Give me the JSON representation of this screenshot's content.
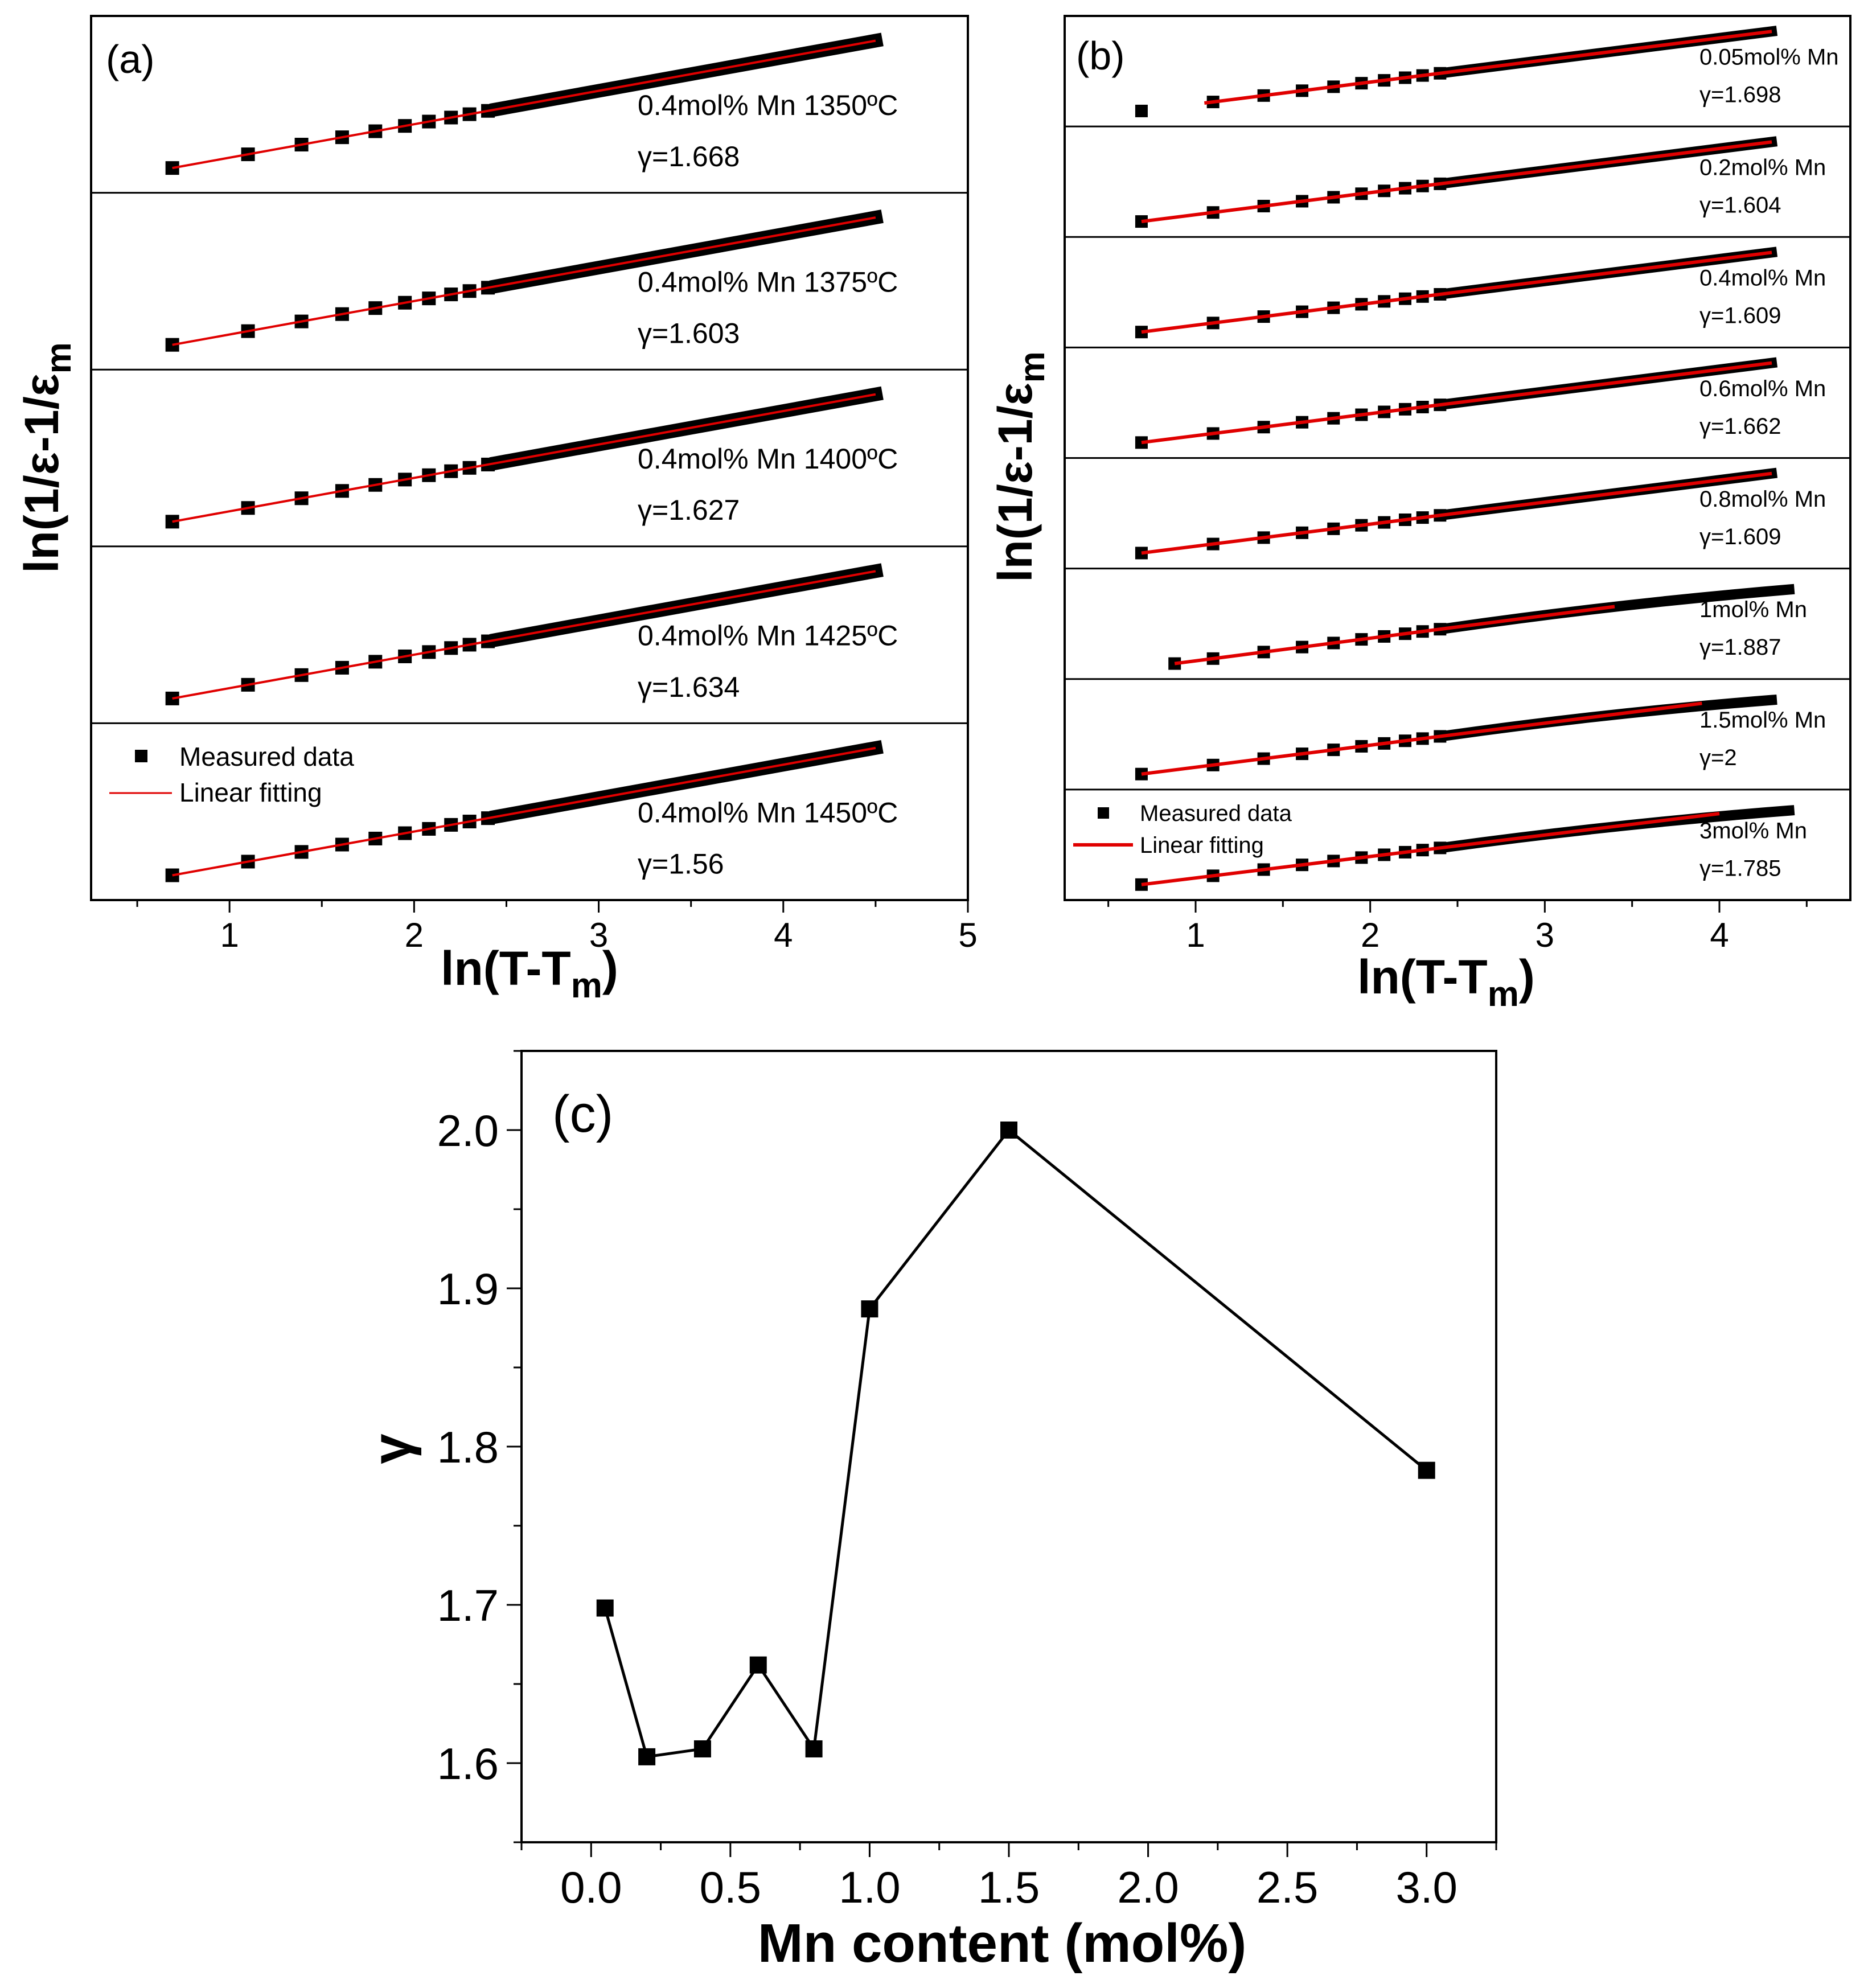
{
  "colors": {
    "fit": "#e00000",
    "marker": "#000000",
    "line": "#000000"
  },
  "chart_data": [
    {
      "panel": "(a)",
      "type": "scatter",
      "title": "",
      "xlabel": "ln(T-T",
      "xlabel_sub": "m",
      "xlabel_end": ")",
      "ylabel": "ln(1/ε-1/ε",
      "ylabel_sub": "m",
      "xlim": [
        0.25,
        5.0
      ],
      "xticks": [
        "1",
        "2",
        "3",
        "4",
        "5"
      ],
      "legend": {
        "marker": "Measured data",
        "line": "Linear fitting"
      },
      "series": [
        {
          "name": "0.4mol% Mn 1350ºC",
          "gamma_label": "γ=1.668",
          "gamma": 1.668,
          "x_start": 0.69,
          "x_end": 4.5
        },
        {
          "name": "0.4mol% Mn 1375ºC",
          "gamma_label": "γ=1.603",
          "gamma": 1.603,
          "x_start": 0.69,
          "x_end": 4.5
        },
        {
          "name": "0.4mol% Mn 1400ºC",
          "gamma_label": "γ=1.627",
          "gamma": 1.627,
          "x_start": 0.69,
          "x_end": 4.5
        },
        {
          "name": "0.4mol% Mn 1425ºC",
          "gamma_label": "γ=1.634",
          "gamma": 1.634,
          "x_start": 0.69,
          "x_end": 4.5
        },
        {
          "name": "0.4mol% Mn 1450ºC",
          "gamma_label": "γ=1.56",
          "gamma": 1.56,
          "x_start": 0.69,
          "x_end": 4.5
        }
      ]
    },
    {
      "panel": "(b)",
      "type": "scatter",
      "title": "",
      "xlabel": "ln(T-T",
      "xlabel_sub": "m",
      "xlabel_end": ")",
      "ylabel": "ln(1/ε-1/ε",
      "ylabel_sub": "m",
      "xlim": [
        0.25,
        4.75
      ],
      "xticks": [
        "1",
        "2",
        "3",
        "4"
      ],
      "legend": {
        "marker": "Measured data",
        "line": "Linear fitting"
      },
      "series": [
        {
          "name": "0.05mol% Mn",
          "gamma_label": "γ=1.698",
          "gamma": 1.698,
          "x_start": 0.69,
          "x_end": 4.3,
          "outlier": true
        },
        {
          "name": "0.2mol% Mn",
          "gamma_label": "γ=1.604",
          "gamma": 1.604,
          "x_start": 0.69,
          "x_end": 4.3
        },
        {
          "name": "0.4mol% Mn",
          "gamma_label": "γ=1.609",
          "gamma": 1.609,
          "x_start": 0.69,
          "x_end": 4.3
        },
        {
          "name": "0.6mol% Mn",
          "gamma_label": "γ=1.662",
          "gamma": 1.662,
          "x_start": 0.69,
          "x_end": 4.3
        },
        {
          "name": "0.8mol% Mn",
          "gamma_label": "γ=1.609",
          "gamma": 1.609,
          "x_start": 0.69,
          "x_end": 4.3
        },
        {
          "name": "1mol% Mn",
          "gamma_label": "γ=1.887",
          "gamma": 1.887,
          "x_start": 0.88,
          "x_end": 4.4,
          "fit_end": 3.4,
          "curved": true
        },
        {
          "name": "1.5mol% Mn",
          "gamma_label": "γ=2",
          "gamma": 2.0,
          "x_start": 0.69,
          "x_end": 4.3,
          "fit_end": 3.9,
          "curved": true
        },
        {
          "name": "3mol% Mn",
          "gamma_label": "γ=1.785",
          "gamma": 1.785,
          "x_start": 0.69,
          "x_end": 4.4,
          "fit_end": 4.0,
          "curved": true
        }
      ]
    },
    {
      "panel": "(c)",
      "type": "line",
      "title": "",
      "xlabel": "Mn content (mol%)",
      "ylabel": "γ",
      "xlim": [
        -0.25,
        3.25
      ],
      "ylim": [
        1.55,
        2.05
      ],
      "xticks": [
        "0.0",
        "0.5",
        "1.0",
        "1.5",
        "2.0",
        "2.5",
        "3.0"
      ],
      "yticks": [
        "1.6",
        "1.7",
        "1.8",
        "1.9",
        "2.0"
      ],
      "x": [
        0.05,
        0.2,
        0.4,
        0.6,
        0.8,
        1.0,
        1.5,
        3.0
      ],
      "values": [
        1.698,
        1.604,
        1.609,
        1.662,
        1.609,
        1.887,
        2.0,
        1.785
      ]
    }
  ]
}
